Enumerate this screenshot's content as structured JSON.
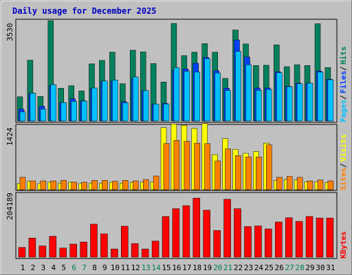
{
  "title": "Daily usage for December 2025",
  "colors": {
    "background": "#c0c0c0",
    "plot_bg": "#c0c0c0",
    "title": "#0000c0",
    "hits": "#00805c",
    "files": "#0040ff",
    "pages": "#00c0ff",
    "visits": "#ffff00",
    "sites": "#ff8000",
    "kbytes": "#ff0000",
    "weekday_label": "#000000",
    "weekend_label": "#00805c"
  },
  "chart_data": [
    {
      "type": "bar",
      "panel": "hits-files-pages",
      "ylabel_max": "3530",
      "ylim": [
        0,
        3530
      ],
      "legend": [
        {
          "label": "Pages",
          "color": "#00c0ff"
        },
        {
          "label": "Files",
          "color": "#0040ff"
        },
        {
          "label": "Hits",
          "color": "#00805c"
        }
      ],
      "categories": [
        "1",
        "2",
        "3",
        "4",
        "5",
        "6",
        "7",
        "8",
        "9",
        "10",
        "11",
        "12",
        "13",
        "14",
        "15",
        "16",
        "17",
        "18",
        "19",
        "20",
        "21",
        "22",
        "23",
        "24",
        "25",
        "26",
        "27",
        "28",
        "29",
        "30",
        "31"
      ],
      "series": [
        {
          "name": "Hits",
          "values": [
            850,
            2140,
            860,
            3530,
            1150,
            1240,
            1060,
            2010,
            2130,
            2420,
            1310,
            2490,
            2430,
            2020,
            1370,
            3430,
            2300,
            2420,
            2720,
            2420,
            1500,
            3200,
            2710,
            1950,
            1960,
            2680,
            1910,
            1980,
            1950,
            3420,
            1880
          ]
        },
        {
          "name": "Files",
          "values": [
            420,
            980,
            520,
            1250,
            650,
            780,
            710,
            1140,
            1400,
            1410,
            680,
            1500,
            1070,
            600,
            620,
            1790,
            1830,
            2030,
            2240,
            1770,
            1150,
            2850,
            2250,
            1160,
            1160,
            1730,
            1220,
            1330,
            1330,
            1760,
            1470
          ]
        },
        {
          "name": "Pages",
          "values": [
            320,
            980,
            420,
            1280,
            650,
            690,
            700,
            1160,
            1410,
            1440,
            640,
            1550,
            1070,
            600,
            600,
            1880,
            1750,
            1720,
            2190,
            1690,
            1070,
            2450,
            1980,
            1080,
            1110,
            1700,
            1210,
            1310,
            1330,
            1720,
            1450
          ]
        }
      ]
    },
    {
      "type": "bar",
      "panel": "visits-sites",
      "ylabel_max": "1424",
      "ylim": [
        0,
        1424
      ],
      "legend": [
        {
          "label": "Sites",
          "color": "#ff8000"
        },
        {
          "label": "Visits",
          "color": "#ffff00"
        }
      ],
      "categories": [
        "1",
        "2",
        "3",
        "4",
        "5",
        "6",
        "7",
        "8",
        "9",
        "10",
        "11",
        "12",
        "13",
        "14",
        "15",
        "16",
        "17",
        "18",
        "19",
        "20",
        "21",
        "22",
        "23",
        "24",
        "25",
        "26",
        "27",
        "28",
        "29",
        "30",
        "31"
      ],
      "series": [
        {
          "name": "Visits",
          "values": [
            140,
            190,
            140,
            170,
            150,
            170,
            140,
            150,
            150,
            170,
            150,
            170,
            170,
            180,
            1400,
            1480,
            1450,
            1380,
            1490,
            790,
            1150,
            910,
            820,
            860,
            1050,
            210,
            230,
            220,
            180,
            180,
            160
          ]
        },
        {
          "name": "Sites",
          "values": [
            280,
            200,
            200,
            200,
            210,
            170,
            170,
            210,
            210,
            190,
            210,
            200,
            230,
            310,
            1040,
            1110,
            1090,
            1050,
            1040,
            650,
            920,
            770,
            740,
            740,
            1010,
            280,
            300,
            280,
            200,
            220,
            200
          ]
        }
      ]
    },
    {
      "type": "bar",
      "panel": "kbytes",
      "ylabel_max": "204189",
      "ylim": [
        0,
        204189
      ],
      "legend": [
        {
          "label": "KBytes",
          "color": "#ff0000"
        }
      ],
      "categories": [
        "1",
        "2",
        "3",
        "4",
        "5",
        "6",
        "7",
        "8",
        "9",
        "10",
        "11",
        "12",
        "13",
        "14",
        "15",
        "16",
        "17",
        "18",
        "19",
        "20",
        "21",
        "22",
        "23",
        "24",
        "25",
        "26",
        "27",
        "28",
        "29",
        "30",
        "31"
      ],
      "series": [
        {
          "name": "KBytes",
          "values": [
            32000,
            63000,
            37000,
            69000,
            30000,
            43000,
            50000,
            109000,
            77000,
            27000,
            102000,
            45000,
            27000,
            53000,
            134000,
            160000,
            170000,
            195000,
            155000,
            88000,
            191000,
            160000,
            101000,
            103000,
            93000,
            116000,
            130000,
            118000,
            134000,
            129000,
            129000
          ]
        }
      ]
    }
  ]
}
